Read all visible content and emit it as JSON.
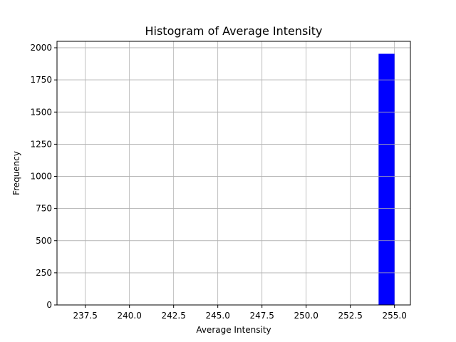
{
  "chart_data": {
    "type": "bar",
    "title": "Histogram of Average Intensity",
    "xlabel": "Average Intensity",
    "ylabel": "Frequency",
    "xlim": [
      235.9,
      255.9
    ],
    "ylim": [
      0,
      2050
    ],
    "xticks": [
      "237.5",
      "240.0",
      "242.5",
      "245.0",
      "247.5",
      "250.0",
      "252.5",
      "255.0"
    ],
    "xtick_values": [
      237.5,
      240.0,
      242.5,
      245.0,
      247.5,
      250.0,
      252.5,
      255.0
    ],
    "yticks": [
      "0",
      "250",
      "500",
      "750",
      "1000",
      "1250",
      "1500",
      "1750",
      "2000"
    ],
    "ytick_values": [
      0,
      250,
      500,
      750,
      1000,
      1250,
      1500,
      1750,
      2000
    ],
    "grid": true,
    "bar_color": "#0000ff",
    "bins": [
      {
        "x0": 254.1,
        "x1": 255.0,
        "value": 1953
      }
    ]
  }
}
